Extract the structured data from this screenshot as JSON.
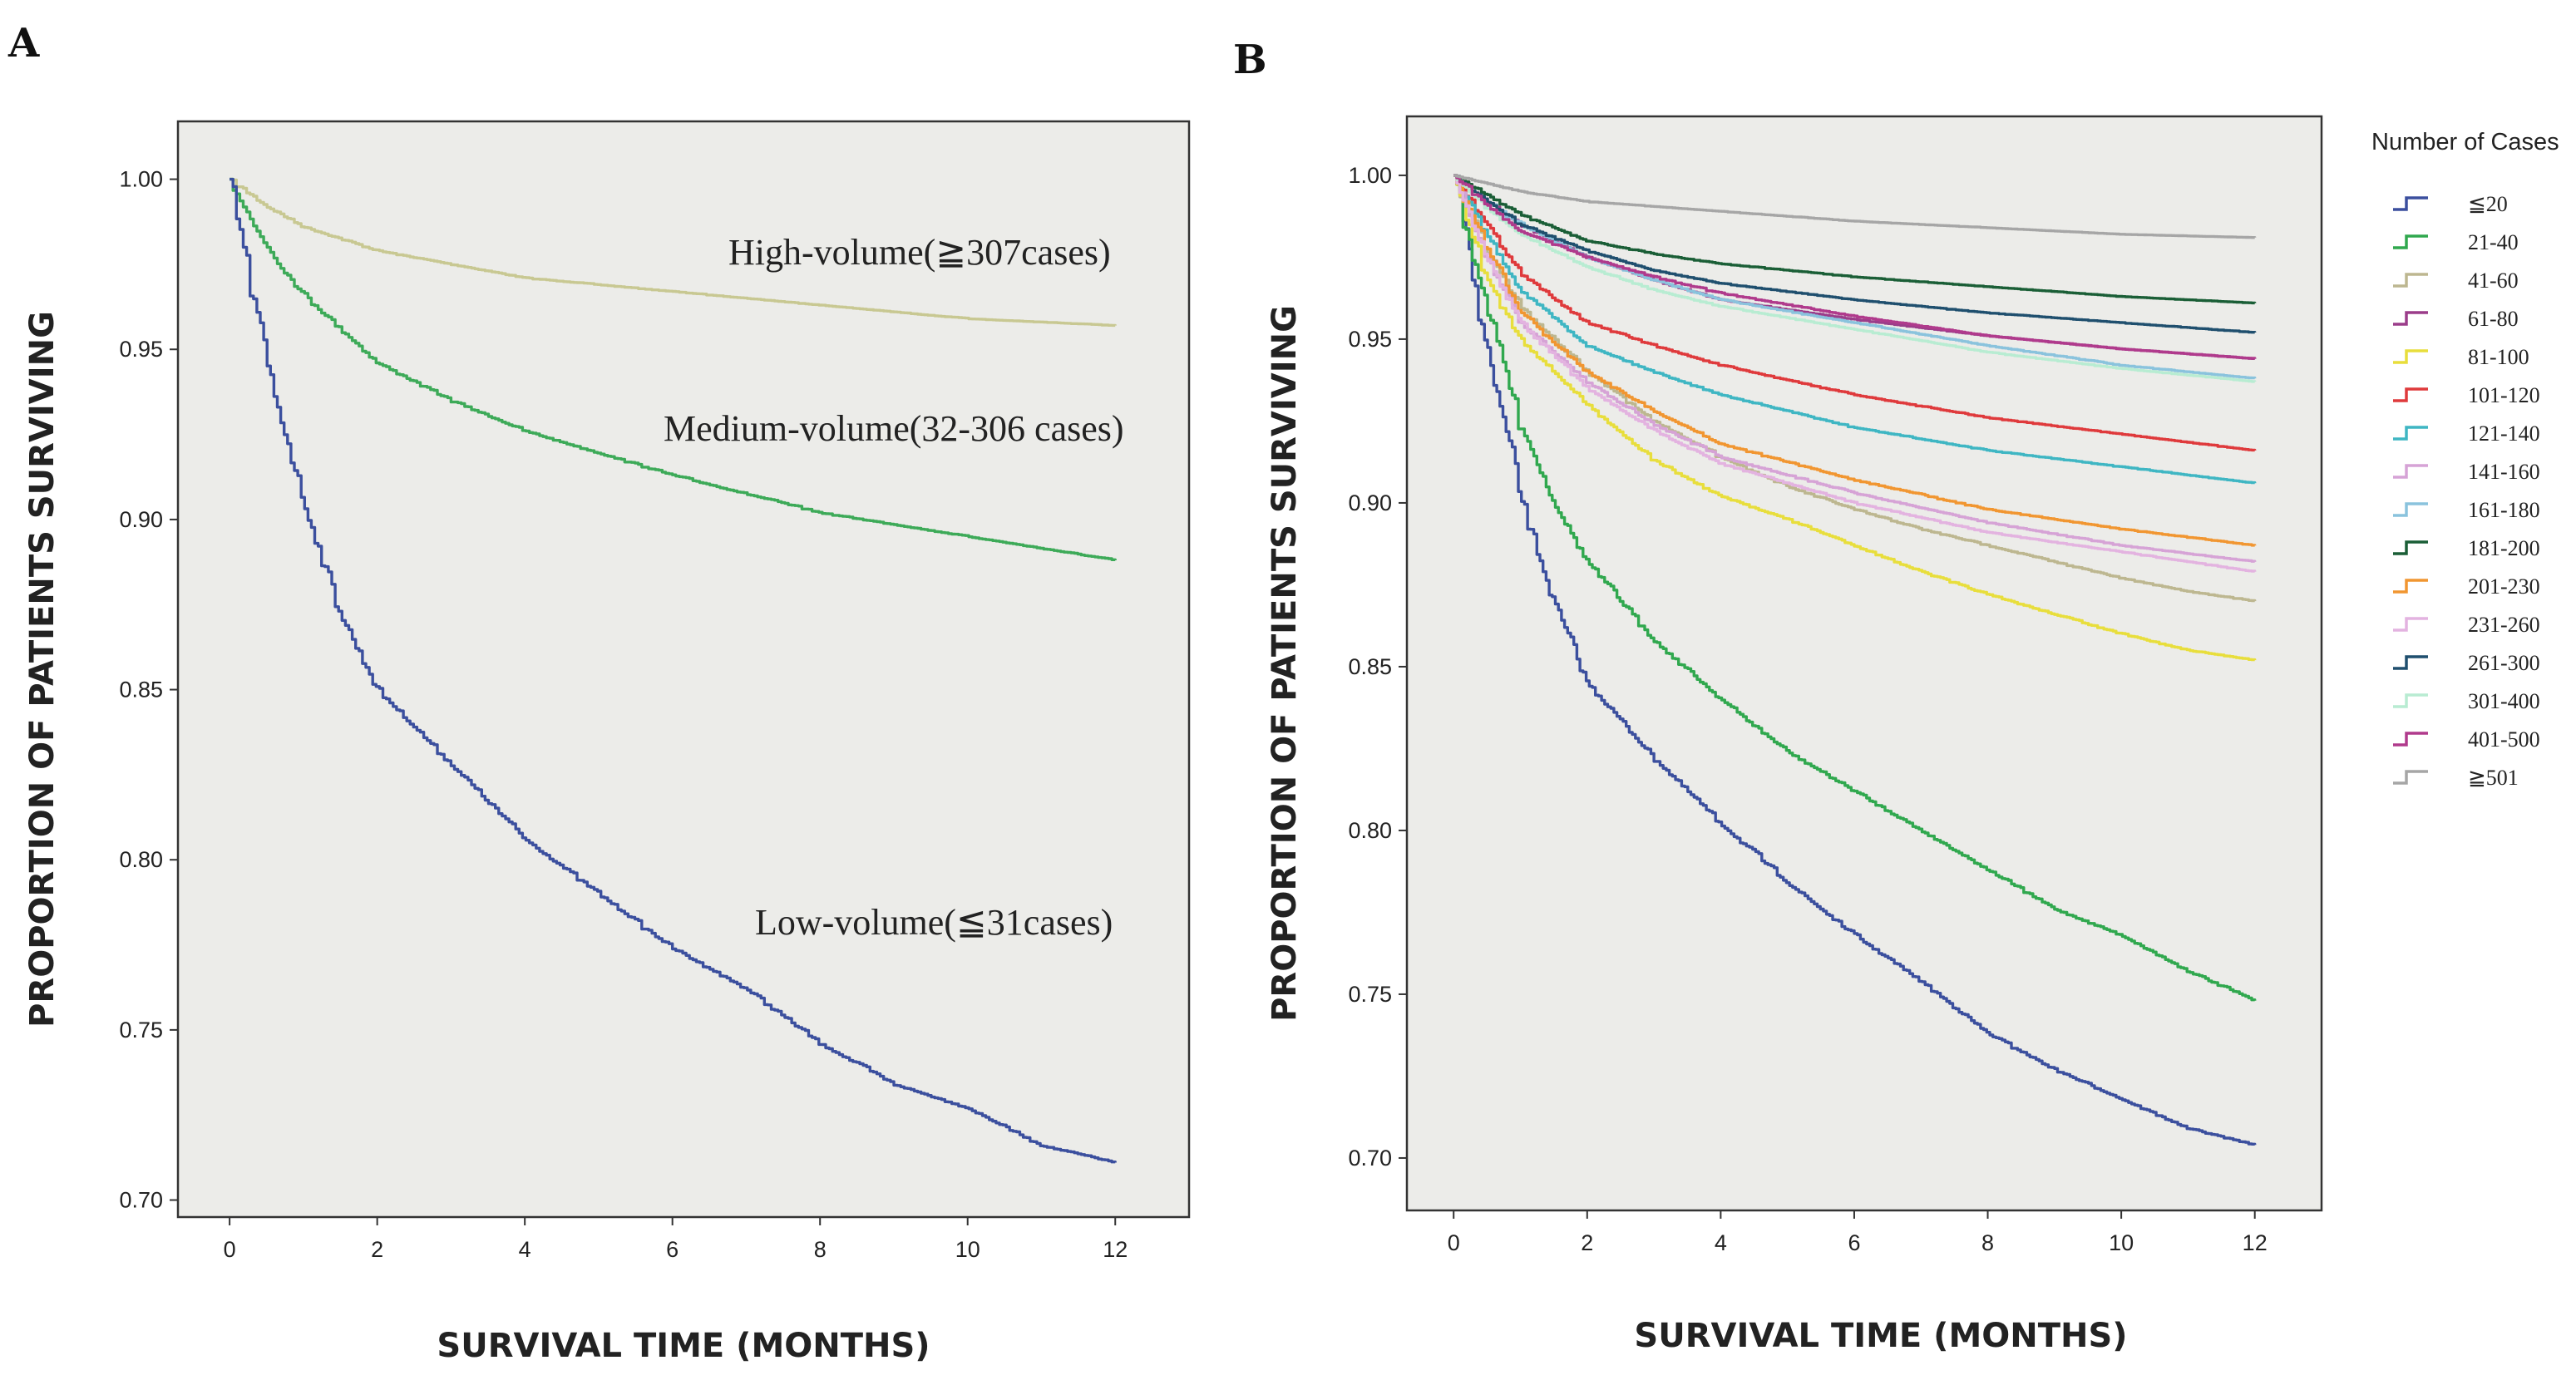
{
  "chart_data": [
    {
      "panel": "A",
      "type": "line",
      "title": "",
      "xlabel": "SURVIVAL TIME (MONTHS)",
      "ylabel": "PROPORTION OF PATIENTS SURVIVING",
      "xlim": [
        -0.7,
        13.0
      ],
      "ylim": [
        0.695,
        1.017
      ],
      "xticks": [
        "0",
        "2",
        "4",
        "6",
        "8",
        "10",
        "12"
      ],
      "yticks": [
        "0.70",
        "0.75",
        "0.80",
        "0.85",
        "0.90",
        "0.95",
        "1.00"
      ],
      "series": [
        {
          "name": "High-volume",
          "color": "#c8c892",
          "x": [
            0,
            0.5,
            1,
            2,
            3,
            4,
            6,
            8,
            10,
            12
          ],
          "y": [
            1.0,
            0.992,
            0.986,
            0.979,
            0.975,
            0.971,
            0.967,
            0.963,
            0.959,
            0.957
          ]
        },
        {
          "name": "Medium-volume",
          "color": "#3daa58",
          "x": [
            0,
            0.3,
            0.7,
            1,
            2,
            3,
            4,
            6,
            8,
            10,
            12
          ],
          "y": [
            1.0,
            0.987,
            0.974,
            0.966,
            0.946,
            0.935,
            0.926,
            0.913,
            0.902,
            0.895,
            0.888
          ]
        },
        {
          "name": "Low-volume",
          "color": "#3b4f9e",
          "x": [
            0,
            0.2,
            0.5,
            1,
            1.5,
            2,
            3,
            4,
            5,
            6,
            7,
            8,
            9,
            10,
            11,
            12
          ],
          "y": [
            1.0,
            0.978,
            0.945,
            0.905,
            0.872,
            0.85,
            0.828,
            0.806,
            0.79,
            0.774,
            0.762,
            0.746,
            0.734,
            0.727,
            0.716,
            0.711
          ]
        }
      ],
      "annotations": [
        {
          "text": "High-volume(≧307cases)",
          "series": "High-volume"
        },
        {
          "text": "Medium-volume(32-306 cases)",
          "series": "Medium-volume"
        },
        {
          "text": "Low-volume(≦31cases)",
          "series": "Low-volume"
        }
      ]
    },
    {
      "panel": "B",
      "type": "line",
      "title": "",
      "xlabel": "SURVIVAL TIME (MONTHS)",
      "ylabel": "PROPORTION OF PATIENTS SURVIVING",
      "xlim": [
        -0.7,
        13.0
      ],
      "ylim": [
        0.684,
        1.018
      ],
      "xticks": [
        "0",
        "2",
        "4",
        "6",
        "8",
        "10",
        "12"
      ],
      "yticks": [
        "0.70",
        "0.75",
        "0.80",
        "0.85",
        "0.90",
        "0.95",
        "1.00"
      ],
      "legend_title": "Number of Cases",
      "legend_position": "right",
      "series": [
        {
          "name": "≦20",
          "color": "#3b4f9e",
          "x": [
            0,
            0.2,
            0.5,
            1,
            1.5,
            2,
            3,
            4,
            5,
            6,
            7,
            8,
            9,
            10,
            11,
            12
          ],
          "y": [
            1.0,
            0.978,
            0.946,
            0.902,
            0.869,
            0.845,
            0.822,
            0.802,
            0.784,
            0.768,
            0.754,
            0.738,
            0.727,
            0.718,
            0.709,
            0.704
          ]
        },
        {
          "name": "21-40",
          "color": "#30a84e",
          "x": [
            0,
            0.2,
            0.5,
            1,
            1.5,
            2,
            3,
            4,
            5,
            6,
            7,
            8,
            9,
            10,
            11,
            12
          ],
          "y": [
            1.0,
            0.982,
            0.96,
            0.924,
            0.9,
            0.882,
            0.858,
            0.84,
            0.824,
            0.812,
            0.8,
            0.788,
            0.776,
            0.768,
            0.757,
            0.748
          ]
        },
        {
          "name": "41-60",
          "color": "#bdb790",
          "x": [
            0,
            0.5,
            1,
            2,
            3,
            4,
            5,
            6,
            7,
            8,
            9,
            10,
            11,
            12
          ],
          "y": [
            1.0,
            0.977,
            0.96,
            0.94,
            0.925,
            0.914,
            0.905,
            0.898,
            0.892,
            0.887,
            0.882,
            0.877,
            0.873,
            0.87
          ]
        },
        {
          "name": "61-80",
          "color": "#9b3d8a",
          "x": [
            0,
            0.5,
            1,
            2,
            3,
            4,
            6,
            8,
            10,
            12
          ],
          "y": [
            1.0,
            0.992,
            0.985,
            0.975,
            0.968,
            0.962,
            0.956,
            0.951,
            0.947,
            0.944
          ]
        },
        {
          "name": "81-100",
          "color": "#e8de3c",
          "x": [
            0,
            0.5,
            1,
            2,
            3,
            4,
            5,
            6,
            7,
            8,
            9,
            10,
            11,
            12
          ],
          "y": [
            1.0,
            0.968,
            0.95,
            0.93,
            0.913,
            0.902,
            0.895,
            0.887,
            0.879,
            0.872,
            0.866,
            0.86,
            0.855,
            0.852
          ]
        },
        {
          "name": "101-120",
          "color": "#df3a3c",
          "x": [
            0,
            0.5,
            1,
            2,
            3,
            4,
            6,
            8,
            10,
            12
          ],
          "y": [
            1.0,
            0.985,
            0.97,
            0.955,
            0.948,
            0.942,
            0.933,
            0.926,
            0.921,
            0.916
          ]
        },
        {
          "name": "121-140",
          "color": "#3fb6c3",
          "x": [
            0,
            0.5,
            1,
            2,
            3,
            4,
            6,
            8,
            10,
            12
          ],
          "y": [
            1.0,
            0.982,
            0.965,
            0.948,
            0.94,
            0.933,
            0.923,
            0.916,
            0.911,
            0.906
          ]
        },
        {
          "name": "141-160",
          "color": "#d6a3d6",
          "x": [
            0,
            0.5,
            1,
            2,
            3,
            4,
            6,
            8,
            10,
            12
          ],
          "y": [
            1.0,
            0.975,
            0.955,
            0.937,
            0.924,
            0.914,
            0.903,
            0.894,
            0.887,
            0.882
          ]
        },
        {
          "name": "161-180",
          "color": "#8ac3dd",
          "x": [
            0,
            0.5,
            1,
            2,
            3,
            4,
            6,
            8,
            10,
            12
          ],
          "y": [
            1.0,
            0.992,
            0.985,
            0.975,
            0.968,
            0.962,
            0.955,
            0.948,
            0.942,
            0.938
          ]
        },
        {
          "name": "181-200",
          "color": "#1a5e36",
          "x": [
            0,
            0.5,
            1,
            2,
            3,
            4,
            6,
            8,
            10,
            12
          ],
          "y": [
            1.0,
            0.994,
            0.988,
            0.98,
            0.976,
            0.973,
            0.969,
            0.966,
            0.963,
            0.961
          ]
        },
        {
          "name": "201-230",
          "color": "#f19631",
          "x": [
            0,
            0.5,
            1,
            2,
            3,
            4,
            6,
            8,
            10,
            12
          ],
          "y": [
            1.0,
            0.978,
            0.958,
            0.94,
            0.928,
            0.918,
            0.907,
            0.898,
            0.892,
            0.887
          ]
        },
        {
          "name": "231-260",
          "color": "#e3b3e0",
          "x": [
            0,
            0.5,
            1,
            2,
            3,
            4,
            6,
            8,
            10,
            12
          ],
          "y": [
            1.0,
            0.975,
            0.955,
            0.935,
            0.922,
            0.912,
            0.9,
            0.891,
            0.885,
            0.879
          ]
        },
        {
          "name": "261-300",
          "color": "#1f4f6e",
          "x": [
            0,
            0.5,
            1,
            2,
            3,
            4,
            6,
            8,
            10,
            12
          ],
          "y": [
            1.0,
            0.992,
            0.985,
            0.977,
            0.971,
            0.967,
            0.962,
            0.958,
            0.955,
            0.952
          ]
        },
        {
          "name": "301-400",
          "color": "#b8ecd2",
          "x": [
            0,
            0.5,
            1,
            2,
            3,
            4,
            6,
            8,
            10,
            12
          ],
          "y": [
            1.0,
            0.99,
            0.982,
            0.972,
            0.965,
            0.96,
            0.953,
            0.946,
            0.941,
            0.937
          ]
        },
        {
          "name": "401-500",
          "color": "#b03a8c",
          "x": [
            0,
            0.5,
            1,
            2,
            3,
            4,
            6,
            8,
            10,
            12
          ],
          "y": [
            1.0,
            0.991,
            0.983,
            0.975,
            0.969,
            0.964,
            0.957,
            0.951,
            0.947,
            0.944
          ]
        },
        {
          "name": "≧501",
          "color": "#a6a6a6",
          "x": [
            0,
            1,
            2,
            4,
            6,
            8,
            10,
            12
          ],
          "y": [
            1.0,
            0.995,
            0.992,
            0.989,
            0.986,
            0.984,
            0.982,
            0.981
          ]
        }
      ]
    }
  ]
}
